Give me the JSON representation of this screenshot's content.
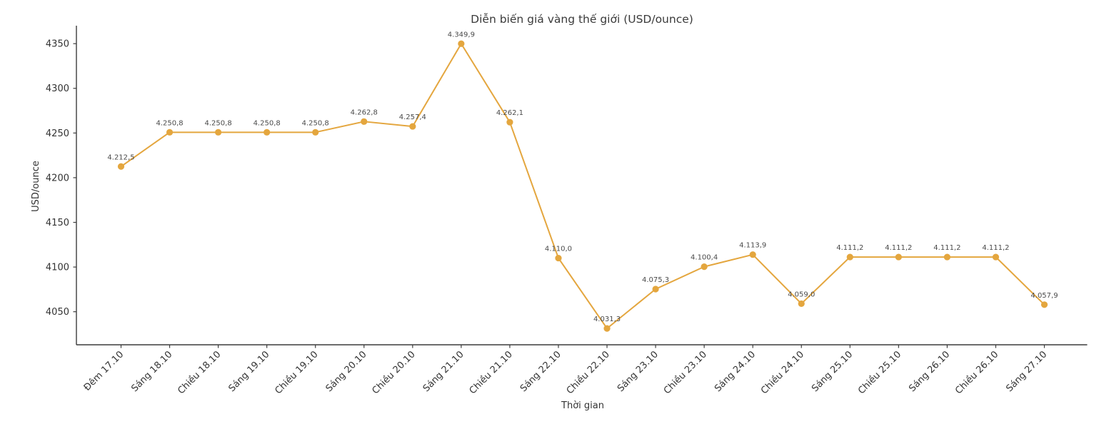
{
  "chart_data": {
    "type": "line",
    "title": "Diễn biến giá vàng thế giới (USD/ounce)",
    "xlabel": "Thời gian",
    "ylabel": "USD/ounce",
    "categories": [
      "Đêm 17.10",
      "Sáng 18.10",
      "Chiều 18.10",
      "Sáng 19.10",
      "Chiều 19.10",
      "Sáng 20.10",
      "Chiều 20.10",
      "Sáng 21.10",
      "Chiều 21.10",
      "Sáng 22.10",
      "Chiều 22.10",
      "Sáng 23.10",
      "Chiều 23.10",
      "Sáng 24.10",
      "Chiều 24.10",
      "Sáng 25.10",
      "Chiều 25.10",
      "Sáng 26.10",
      "Chiều 26.10",
      "Sáng 27.10"
    ],
    "values": [
      4212.5,
      4250.8,
      4250.8,
      4250.8,
      4250.8,
      4262.8,
      4257.4,
      4349.9,
      4262.1,
      4110.0,
      4031.3,
      4075.3,
      4100.4,
      4113.9,
      4059.0,
      4111.2,
      4111.2,
      4111.2,
      4111.2,
      4057.9
    ],
    "point_labels": [
      "4.212,5",
      "4.250,8",
      "4.250,8",
      "4.250,8",
      "4.250,8",
      "4.262,8",
      "4.257,4",
      "4.349,9",
      "4.262,1",
      "4.110,0",
      "4.031,3",
      "4.075,3",
      "4.100,4",
      "4.113,9",
      "4.059,0",
      "4.111,2",
      "4.111,2",
      "4.111,2",
      "4.111,2",
      "4.057,9"
    ],
    "yticks": [
      4050,
      4100,
      4150,
      4200,
      4250,
      4300,
      4350
    ],
    "ylim": [
      4013,
      4368.5
    ],
    "grid": false,
    "legend": null,
    "line_color": "#E4A63E",
    "marker_color": "#E4A63E",
    "axis_color": "#3c3c3c",
    "title_color": "#3a3a3a",
    "tick_color": "#333333",
    "point_label_color": "#4a4a4a"
  }
}
